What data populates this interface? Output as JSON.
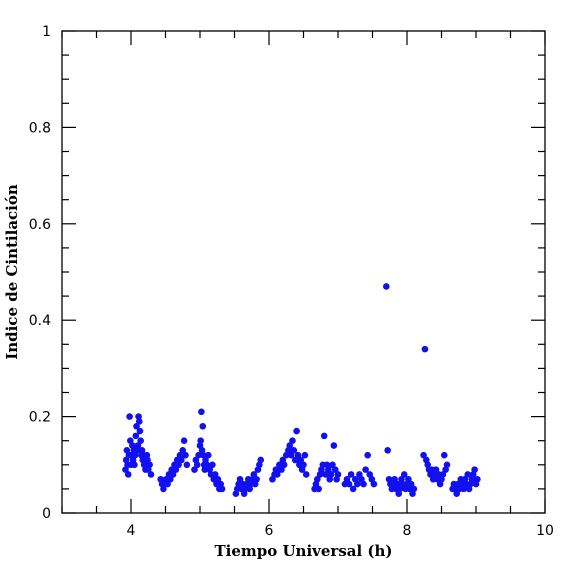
{
  "chart_data": {
    "type": "scatter",
    "xlabel": "Tiempo Universal (h)",
    "ylabel": "Indice de Cintilación",
    "xlim": [
      3,
      10
    ],
    "ylim": [
      0,
      1
    ],
    "x_major_ticks": [
      4,
      6,
      8,
      10
    ],
    "x_minor_step": 0.5,
    "y_major_ticks": [
      0,
      0.2,
      0.4,
      0.6,
      0.8,
      1
    ],
    "y_minor_step": 0.05,
    "x_tick_labels": [
      "4",
      "6",
      "8",
      "10"
    ],
    "y_tick_labels": [
      "0",
      "0.2",
      "0.4",
      "0.6",
      "0.8",
      "1"
    ],
    "grid": false,
    "legend": "none",
    "marker_color": "#1010f0",
    "series": [
      {
        "values": [
          [
            3.92,
            0.09
          ],
          [
            3.93,
            0.11
          ],
          [
            3.94,
            0.13
          ],
          [
            3.95,
            0.1
          ],
          [
            3.96,
            0.08
          ],
          [
            3.97,
            0.12
          ],
          [
            3.98,
            0.2
          ],
          [
            3.99,
            0.15
          ],
          [
            4.0,
            0.1
          ],
          [
            4.01,
            0.12
          ],
          [
            4.02,
            0.14
          ],
          [
            4.03,
            0.11
          ],
          [
            4.04,
            0.13
          ],
          [
            4.05,
            0.1
          ],
          [
            4.06,
            0.12
          ],
          [
            4.07,
            0.16
          ],
          [
            4.08,
            0.18
          ],
          [
            4.09,
            0.13
          ],
          [
            4.1,
            0.14
          ],
          [
            4.11,
            0.2
          ],
          [
            4.12,
            0.19
          ],
          [
            4.13,
            0.17
          ],
          [
            4.14,
            0.15
          ],
          [
            4.15,
            0.12
          ],
          [
            4.16,
            0.13
          ],
          [
            4.17,
            0.11
          ],
          [
            4.18,
            0.12
          ],
          [
            4.19,
            0.1
          ],
          [
            4.2,
            0.11
          ],
          [
            4.21,
            0.09
          ],
          [
            4.22,
            0.1
          ],
          [
            4.23,
            0.12
          ],
          [
            4.24,
            0.11
          ],
          [
            4.25,
            0.09
          ],
          [
            4.27,
            0.1
          ],
          [
            4.29,
            0.08
          ],
          [
            4.43,
            0.07
          ],
          [
            4.45,
            0.06
          ],
          [
            4.47,
            0.05
          ],
          [
            4.49,
            0.06
          ],
          [
            4.51,
            0.07
          ],
          [
            4.53,
            0.06
          ],
          [
            4.55,
            0.08
          ],
          [
            4.57,
            0.07
          ],
          [
            4.59,
            0.09
          ],
          [
            4.61,
            0.08
          ],
          [
            4.63,
            0.1
          ],
          [
            4.65,
            0.09
          ],
          [
            4.67,
            0.11
          ],
          [
            4.69,
            0.1
          ],
          [
            4.71,
            0.12
          ],
          [
            4.73,
            0.11
          ],
          [
            4.75,
            0.13
          ],
          [
            4.77,
            0.15
          ],
          [
            4.79,
            0.12
          ],
          [
            4.81,
            0.1
          ],
          [
            4.92,
            0.09
          ],
          [
            4.94,
            0.11
          ],
          [
            4.96,
            0.1
          ],
          [
            4.98,
            0.12
          ],
          [
            5.0,
            0.14
          ],
          [
            5.01,
            0.15
          ],
          [
            5.02,
            0.21
          ],
          [
            5.03,
            0.13
          ],
          [
            5.04,
            0.18
          ],
          [
            5.05,
            0.12
          ],
          [
            5.06,
            0.1
          ],
          [
            5.07,
            0.09
          ],
          [
            5.08,
            0.11
          ],
          [
            5.1,
            0.1
          ],
          [
            5.12,
            0.12
          ],
          [
            5.14,
            0.09
          ],
          [
            5.16,
            0.08
          ],
          [
            5.18,
            0.1
          ],
          [
            5.2,
            0.07
          ],
          [
            5.22,
            0.08
          ],
          [
            5.24,
            0.06
          ],
          [
            5.26,
            0.07
          ],
          [
            5.28,
            0.05
          ],
          [
            5.3,
            0.06
          ],
          [
            5.32,
            0.05
          ],
          [
            5.52,
            0.04
          ],
          [
            5.54,
            0.05
          ],
          [
            5.56,
            0.06
          ],
          [
            5.58,
            0.07
          ],
          [
            5.6,
            0.05
          ],
          [
            5.62,
            0.06
          ],
          [
            5.64,
            0.04
          ],
          [
            5.66,
            0.05
          ],
          [
            5.68,
            0.06
          ],
          [
            5.7,
            0.07
          ],
          [
            5.72,
            0.05
          ],
          [
            5.74,
            0.06
          ],
          [
            5.76,
            0.07
          ],
          [
            5.78,
            0.08
          ],
          [
            5.8,
            0.06
          ],
          [
            5.82,
            0.07
          ],
          [
            5.84,
            0.09
          ],
          [
            5.86,
            0.1
          ],
          [
            5.88,
            0.11
          ],
          [
            6.05,
            0.07
          ],
          [
            6.08,
            0.08
          ],
          [
            6.1,
            0.09
          ],
          [
            6.12,
            0.08
          ],
          [
            6.15,
            0.1
          ],
          [
            6.18,
            0.09
          ],
          [
            6.2,
            0.11
          ],
          [
            6.22,
            0.1
          ],
          [
            6.25,
            0.12
          ],
          [
            6.28,
            0.13
          ],
          [
            6.3,
            0.14
          ],
          [
            6.32,
            0.12
          ],
          [
            6.34,
            0.15
          ],
          [
            6.36,
            0.13
          ],
          [
            6.38,
            0.11
          ],
          [
            6.4,
            0.17
          ],
          [
            6.42,
            0.12
          ],
          [
            6.44,
            0.1
          ],
          [
            6.46,
            0.11
          ],
          [
            6.48,
            0.09
          ],
          [
            6.5,
            0.1
          ],
          [
            6.52,
            0.12
          ],
          [
            6.54,
            0.08
          ],
          [
            6.66,
            0.05
          ],
          [
            6.68,
            0.06
          ],
          [
            6.7,
            0.07
          ],
          [
            6.72,
            0.05
          ],
          [
            6.74,
            0.08
          ],
          [
            6.76,
            0.09
          ],
          [
            6.78,
            0.1
          ],
          [
            6.8,
            0.16
          ],
          [
            6.82,
            0.08
          ],
          [
            6.84,
            0.1
          ],
          [
            6.86,
            0.09
          ],
          [
            6.88,
            0.07
          ],
          [
            6.9,
            0.08
          ],
          [
            6.92,
            0.1
          ],
          [
            6.94,
            0.14
          ],
          [
            6.96,
            0.09
          ],
          [
            6.98,
            0.07
          ],
          [
            7.0,
            0.08
          ],
          [
            7.1,
            0.06
          ],
          [
            7.13,
            0.07
          ],
          [
            7.16,
            0.06
          ],
          [
            7.19,
            0.08
          ],
          [
            7.22,
            0.05
          ],
          [
            7.25,
            0.07
          ],
          [
            7.28,
            0.06
          ],
          [
            7.31,
            0.08
          ],
          [
            7.34,
            0.07
          ],
          [
            7.37,
            0.06
          ],
          [
            7.4,
            0.09
          ],
          [
            7.43,
            0.12
          ],
          [
            7.46,
            0.08
          ],
          [
            7.49,
            0.07
          ],
          [
            7.52,
            0.06
          ],
          [
            7.7,
            0.47
          ],
          [
            7.72,
            0.13
          ],
          [
            7.74,
            0.07
          ],
          [
            7.76,
            0.06
          ],
          [
            7.78,
            0.05
          ],
          [
            7.8,
            0.06
          ],
          [
            7.82,
            0.07
          ],
          [
            7.84,
            0.05
          ],
          [
            7.86,
            0.06
          ],
          [
            7.88,
            0.04
          ],
          [
            7.9,
            0.05
          ],
          [
            7.92,
            0.07
          ],
          [
            7.94,
            0.06
          ],
          [
            7.96,
            0.08
          ],
          [
            7.98,
            0.05
          ],
          [
            8.0,
            0.06
          ],
          [
            8.02,
            0.07
          ],
          [
            8.04,
            0.05
          ],
          [
            8.06,
            0.06
          ],
          [
            8.08,
            0.04
          ],
          [
            8.1,
            0.05
          ],
          [
            8.24,
            0.12
          ],
          [
            8.26,
            0.34
          ],
          [
            8.28,
            0.11
          ],
          [
            8.3,
            0.1
          ],
          [
            8.32,
            0.09
          ],
          [
            8.34,
            0.08
          ],
          [
            8.36,
            0.09
          ],
          [
            8.38,
            0.07
          ],
          [
            8.4,
            0.08
          ],
          [
            8.42,
            0.09
          ],
          [
            8.44,
            0.07
          ],
          [
            8.46,
            0.08
          ],
          [
            8.48,
            0.06
          ],
          [
            8.5,
            0.07
          ],
          [
            8.52,
            0.08
          ],
          [
            8.54,
            0.12
          ],
          [
            8.56,
            0.09
          ],
          [
            8.58,
            0.1
          ],
          [
            8.66,
            0.05
          ],
          [
            8.68,
            0.06
          ],
          [
            8.7,
            0.05
          ],
          [
            8.72,
            0.04
          ],
          [
            8.74,
            0.06
          ],
          [
            8.76,
            0.05
          ],
          [
            8.78,
            0.07
          ],
          [
            8.8,
            0.06
          ],
          [
            8.82,
            0.05
          ],
          [
            8.84,
            0.07
          ],
          [
            8.86,
            0.06
          ],
          [
            8.88,
            0.08
          ],
          [
            8.9,
            0.05
          ],
          [
            8.92,
            0.06
          ],
          [
            8.94,
            0.07
          ],
          [
            8.96,
            0.08
          ],
          [
            8.98,
            0.09
          ],
          [
            9.0,
            0.06
          ],
          [
            9.02,
            0.07
          ]
        ]
      }
    ]
  }
}
